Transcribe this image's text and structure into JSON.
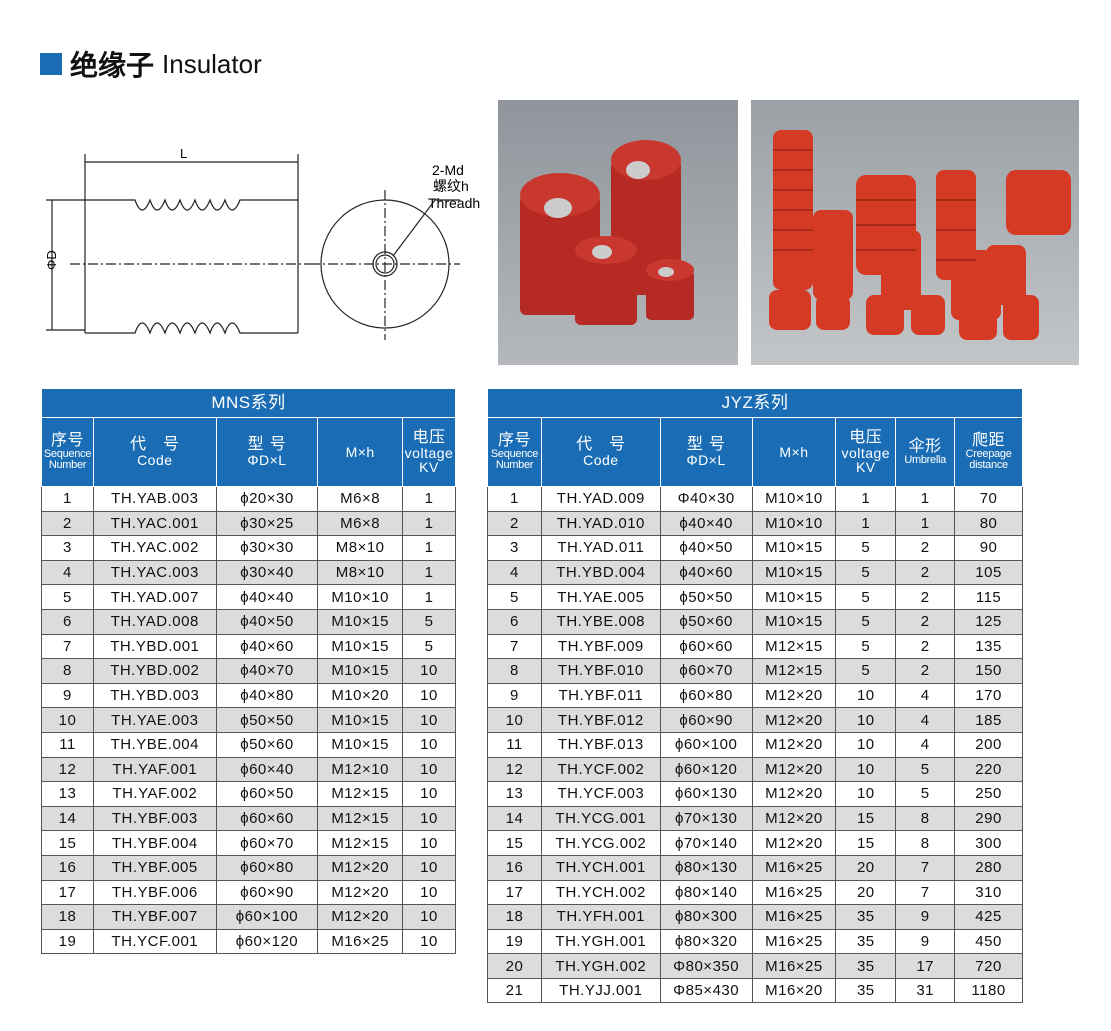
{
  "title": {
    "cn": "绝缘子",
    "en": "Insulator"
  },
  "drawing": {
    "length_label": "L",
    "diameter_label": "ΦD",
    "thread_label_1": "2-Md",
    "thread_label_2": "螺纹h",
    "thread_label_3": "Threadh"
  },
  "colors": {
    "accent": "#1a6db5",
    "insulator": "#b52a22"
  },
  "mns": {
    "caption": "MNS系列",
    "headers": [
      {
        "cn": "序号",
        "en": "Sequence Number"
      },
      {
        "cn": "代　号",
        "en": "Code"
      },
      {
        "cn": "型 号",
        "en": "ΦD×L"
      },
      {
        "cn": "",
        "en": "M×h"
      },
      {
        "cn": "电压",
        "en": "voltage KV"
      }
    ],
    "rows": [
      [
        "1",
        "TH.YAB.003",
        "ϕ20×30",
        "M6×8",
        "1"
      ],
      [
        "2",
        "TH.YAC.001",
        "ϕ30×25",
        "M6×8",
        "1"
      ],
      [
        "3",
        "TH.YAC.002",
        "ϕ30×30",
        "M8×10",
        "1"
      ],
      [
        "4",
        "TH.YAC.003",
        "ϕ30×40",
        "M8×10",
        "1"
      ],
      [
        "5",
        "TH.YAD.007",
        "ϕ40×40",
        "M10×10",
        "1"
      ],
      [
        "6",
        "TH.YAD.008",
        "ϕ40×50",
        "M10×15",
        "5"
      ],
      [
        "7",
        "TH.YBD.001",
        "ϕ40×60",
        "M10×15",
        "5"
      ],
      [
        "8",
        "TH.YBD.002",
        "ϕ40×70",
        "M10×15",
        "10"
      ],
      [
        "9",
        "TH.YBD.003",
        "ϕ40×80",
        "M10×20",
        "10"
      ],
      [
        "10",
        "TH.YAE.003",
        "ϕ50×50",
        "M10×15",
        "10"
      ],
      [
        "11",
        "TH.YBE.004",
        "ϕ50×60",
        "M10×15",
        "10"
      ],
      [
        "12",
        "TH.YAF.001",
        "ϕ60×40",
        "M12×10",
        "10"
      ],
      [
        "13",
        "TH.YAF.002",
        "ϕ60×50",
        "M12×15",
        "10"
      ],
      [
        "14",
        "TH.YBF.003",
        "ϕ60×60",
        "M12×15",
        "10"
      ],
      [
        "15",
        "TH.YBF.004",
        "ϕ60×70",
        "M12×15",
        "10"
      ],
      [
        "16",
        "TH.YBF.005",
        "ϕ60×80",
        "M12×20",
        "10"
      ],
      [
        "17",
        "TH.YBF.006",
        "ϕ60×90",
        "M12×20",
        "10"
      ],
      [
        "18",
        "TH.YBF.007",
        "ϕ60×100",
        "M12×20",
        "10"
      ],
      [
        "19",
        "TH.YCF.001",
        "ϕ60×120",
        "M16×25",
        "10"
      ]
    ]
  },
  "jyz": {
    "caption": "JYZ系列",
    "headers": [
      {
        "cn": "序号",
        "en": "Sequence Number"
      },
      {
        "cn": "代　号",
        "en": "Code"
      },
      {
        "cn": "型 号",
        "en": "ΦD×L"
      },
      {
        "cn": "",
        "en": "M×h"
      },
      {
        "cn": "电压",
        "en": "voltage KV"
      },
      {
        "cn": "伞形",
        "en": "Umbrella"
      },
      {
        "cn": "爬距",
        "en": "Creepage distance"
      }
    ],
    "rows": [
      [
        "1",
        "TH.YAD.009",
        "Φ40×30",
        "M10×10",
        "1",
        "1",
        "70"
      ],
      [
        "2",
        "TH.YAD.010",
        "ϕ40×40",
        "M10×10",
        "1",
        "1",
        "80"
      ],
      [
        "3",
        "TH.YAD.011",
        "ϕ40×50",
        "M10×15",
        "5",
        "2",
        "90"
      ],
      [
        "4",
        "TH.YBD.004",
        "ϕ40×60",
        "M10×15",
        "5",
        "2",
        "105"
      ],
      [
        "5",
        "TH.YAE.005",
        "ϕ50×50",
        "M10×15",
        "5",
        "2",
        "115"
      ],
      [
        "6",
        "TH.YBE.008",
        "ϕ50×60",
        "M10×15",
        "5",
        "2",
        "125"
      ],
      [
        "7",
        "TH.YBF.009",
        "ϕ60×60",
        "M12×15",
        "5",
        "2",
        "135"
      ],
      [
        "8",
        "TH.YBF.010",
        "ϕ60×70",
        "M12×15",
        "5",
        "2",
        "150"
      ],
      [
        "9",
        "TH.YBF.011",
        "ϕ60×80",
        "M12×20",
        "10",
        "4",
        "170"
      ],
      [
        "10",
        "TH.YBF.012",
        "ϕ60×90",
        "M12×20",
        "10",
        "4",
        "185"
      ],
      [
        "11",
        "TH.YBF.013",
        "ϕ60×100",
        "M12×20",
        "10",
        "4",
        "200"
      ],
      [
        "12",
        "TH.YCF.002",
        "ϕ60×120",
        "M12×20",
        "10",
        "5",
        "220"
      ],
      [
        "13",
        "TH.YCF.003",
        "ϕ60×130",
        "M12×20",
        "10",
        "5",
        "250"
      ],
      [
        "14",
        "TH.YCG.001",
        "ϕ70×130",
        "M12×20",
        "15",
        "8",
        "290"
      ],
      [
        "15",
        "TH.YCG.002",
        "ϕ70×140",
        "M12×20",
        "15",
        "8",
        "300"
      ],
      [
        "16",
        "TH.YCH.001",
        "ϕ80×130",
        "M16×25",
        "20",
        "7",
        "280"
      ],
      [
        "17",
        "TH.YCH.002",
        "ϕ80×140",
        "M16×25",
        "20",
        "7",
        "310"
      ],
      [
        "18",
        "TH.YFH.001",
        "ϕ80×300",
        "M16×25",
        "35",
        "9",
        "425"
      ],
      [
        "19",
        "TH.YGH.001",
        "ϕ80×320",
        "M16×25",
        "35",
        "9",
        "450"
      ],
      [
        "20",
        "TH.YGH.002",
        "Φ80×350",
        "M16×25",
        "35",
        "17",
        "720"
      ],
      [
        "21",
        "TH.YJJ.001",
        "Φ85×430",
        "M16×20",
        "35",
        "31",
        "1180"
      ]
    ]
  }
}
